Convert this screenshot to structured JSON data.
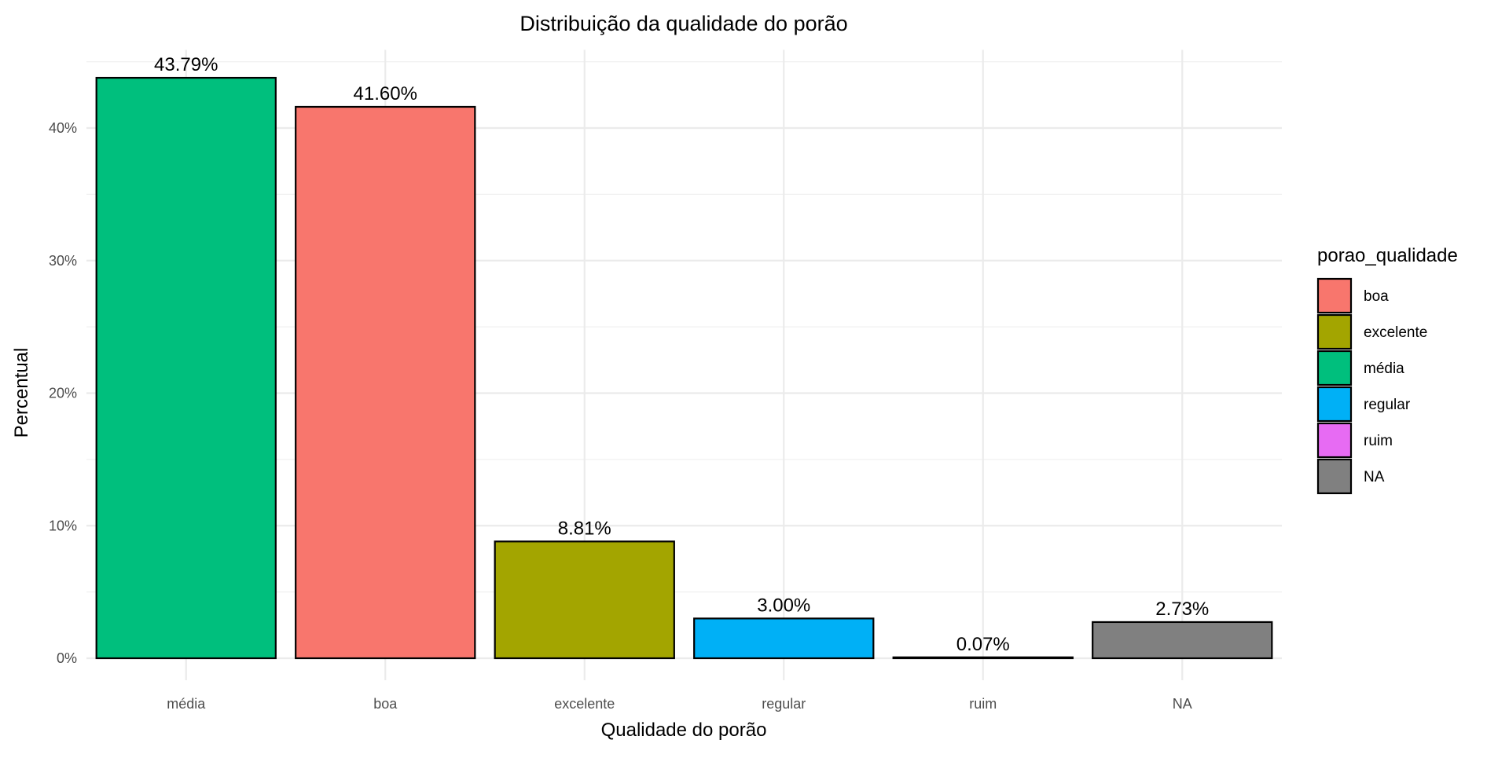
{
  "chart_data": {
    "type": "bar",
    "title": "Distribuição da qualidade do porão",
    "xlabel": "Qualidade do porão",
    "ylabel": "Percentual",
    "categories": [
      "média",
      "boa",
      "excelente",
      "regular",
      "ruim",
      "NA"
    ],
    "values": [
      43.79,
      41.6,
      8.81,
      3.0,
      0.07,
      2.73
    ],
    "data_labels": [
      "43.79%",
      "41.60%",
      "8.81%",
      "3.00%",
      "0.07%",
      "2.73%"
    ],
    "ylim": [
      0,
      45.9
    ],
    "yticks": [
      0,
      10,
      20,
      30,
      40
    ],
    "ytick_labels": [
      "0%",
      "10%",
      "20%",
      "30%",
      "40%"
    ],
    "grid": true,
    "legend": {
      "title": "porao_qualidade",
      "position": "right",
      "entries": [
        {
          "label": "boa",
          "color": "#F8766D"
        },
        {
          "label": "excelente",
          "color": "#A3A500"
        },
        {
          "label": "média",
          "color": "#00BF7D"
        },
        {
          "label": "regular",
          "color": "#00B0F6"
        },
        {
          "label": "ruim",
          "color": "#E76BF3"
        },
        {
          "label": "NA",
          "color": "#808080"
        }
      ]
    },
    "colors": {
      "média": "#00BF7D",
      "boa": "#F8766D",
      "excelente": "#A3A500",
      "regular": "#00B0F6",
      "ruim": "#E76BF3",
      "NA": "#808080"
    }
  }
}
